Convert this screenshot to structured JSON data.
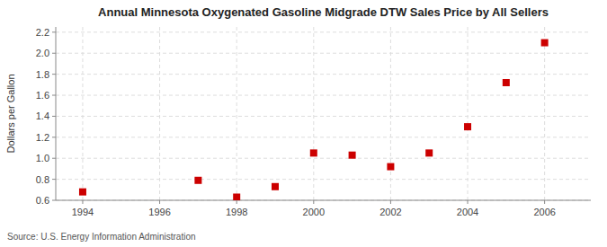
{
  "chart_data": {
    "type": "scatter",
    "title": "Annual Minnesota Oxygenated Gasoline Midgrade DTW Sales Price by All Sellers",
    "y_label": "Dollars per Gallon",
    "annotations": [
      "Source: U.S. Energy Information Administration"
    ],
    "x": [
      1994,
      1997,
      1998,
      1999,
      2000,
      2001,
      2002,
      2003,
      2004,
      2005,
      2006
    ],
    "values": [
      0.68,
      0.79,
      0.63,
      0.73,
      1.05,
      1.03,
      0.92,
      1.05,
      1.3,
      1.72,
      2.1
    ],
    "color": "#cc0000",
    "marker": "square",
    "xlim": [
      1993.3,
      2007.2
    ],
    "ylim": [
      0.6,
      2.25
    ],
    "xticks": [
      1994,
      1996,
      1998,
      2000,
      2002,
      2004,
      2006
    ],
    "yticks": [
      0.6,
      0.8,
      {
        "value": 1.0,
        "label": "1.0"
      },
      1.2,
      1.4,
      1.6,
      1.8,
      {
        "value": 2.0,
        "label": "2.0"
      },
      2.2
    ],
    "grid": true
  }
}
